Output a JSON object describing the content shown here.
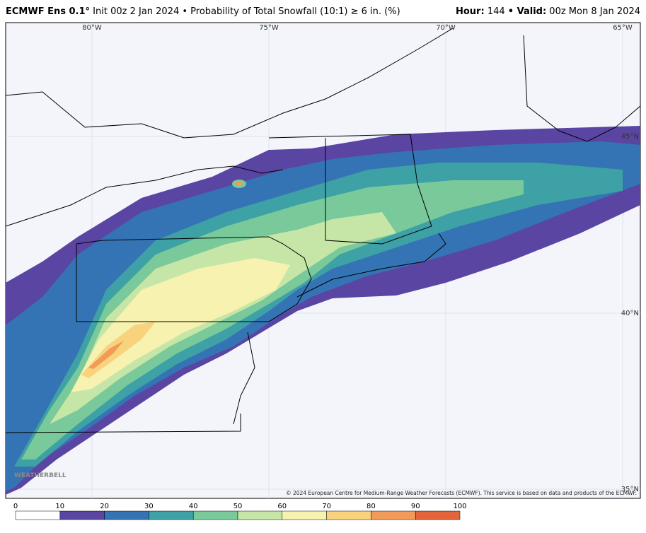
{
  "header": {
    "model": "ECMWF Ens 0.1°",
    "title": "Init 00z 2 Jan 2024 • Probability of Total Snowfall (10:1) ≥ 6 in. (%)",
    "hour_label": "Hour:",
    "hour": "144",
    "valid_label": "• Valid:",
    "valid": "00z Mon 8 Jan 2024"
  },
  "map": {
    "longitudes": [
      "80°W",
      "75°W",
      "70°W",
      "65°W"
    ],
    "latitudes": [
      "45°N",
      "40°N",
      "35°N"
    ],
    "copyright": "© 2024 European Centre for Medium-Range Weather Forecasts (ECMWF). This service is based on data and products of the ECMWF.",
    "logo": "WEATHERBELL"
  },
  "colorbar": {
    "ticks": [
      0,
      10,
      20,
      30,
      40,
      50,
      60,
      70,
      80,
      90,
      100
    ],
    "colors": [
      "#ffffff",
      "#5a45a3",
      "#3574b4",
      "#3ea1a6",
      "#79c99a",
      "#c6e6a8",
      "#f7f2b0",
      "#f8d27c",
      "#f29a58",
      "#e4643c",
      "#a30a40"
    ]
  }
}
